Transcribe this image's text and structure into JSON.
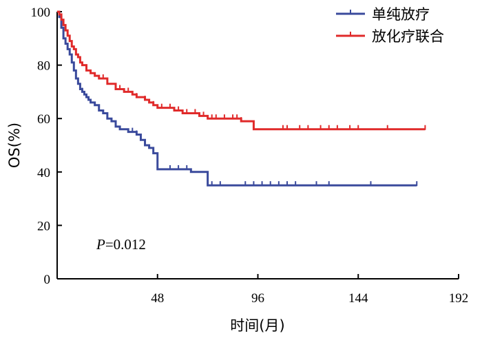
{
  "chart_data": {
    "type": "line",
    "title": "",
    "xlabel": "时间(月)",
    "ylabel": "OS(%)",
    "xlim": [
      0,
      192
    ],
    "ylim": [
      0,
      100
    ],
    "xticks": [
      48,
      96,
      144,
      192
    ],
    "yticks": [
      0,
      20,
      40,
      60,
      80,
      100
    ],
    "grid": false,
    "legend_position": "top-right",
    "annotation": {
      "italic": "P",
      "text": "=0.012"
    },
    "series": [
      {
        "name": "单纯放疗",
        "color": "#3a4a9c",
        "x": [
          0,
          1,
          2,
          3,
          4,
          5,
          6,
          7,
          8,
          9,
          10,
          11,
          12,
          13,
          14,
          15,
          16,
          18,
          20,
          22,
          24,
          26,
          28,
          30,
          32,
          34,
          36,
          38,
          40,
          42,
          44,
          46,
          48,
          52,
          56,
          60,
          64,
          68,
          72,
          80,
          96,
          120,
          144,
          172
        ],
        "y": [
          100,
          98,
          94,
          90,
          88,
          86,
          84,
          81,
          78,
          75,
          73,
          71,
          70,
          69,
          68,
          67,
          66,
          65,
          63,
          62,
          60,
          59,
          57,
          56,
          56,
          55,
          55,
          54,
          52,
          50,
          49,
          47,
          41,
          41,
          41,
          41,
          40,
          40,
          35,
          35,
          35,
          35,
          35,
          35
        ],
        "censor_x": [
          2,
          12,
          24,
          36,
          38,
          54,
          58,
          62,
          72,
          74,
          78,
          90,
          94,
          98,
          102,
          106,
          110,
          114,
          124,
          130,
          150,
          172
        ]
      },
      {
        "name": "放化疗联合",
        "color": "#e02a2a",
        "x": [
          0,
          1,
          2,
          3,
          4,
          5,
          6,
          7,
          8,
          9,
          10,
          11,
          12,
          14,
          16,
          18,
          20,
          24,
          28,
          32,
          36,
          38,
          40,
          42,
          44,
          46,
          48,
          52,
          56,
          60,
          64,
          68,
          72,
          80,
          88,
          94,
          120,
          150,
          176
        ],
        "y": [
          100,
          99,
          97,
          95,
          93,
          91,
          89,
          87,
          86,
          84,
          83,
          81,
          80,
          78,
          77,
          76,
          75,
          73,
          71,
          70,
          69,
          68,
          68,
          67,
          66,
          65,
          64,
          64,
          63,
          62,
          62,
          61,
          60,
          60,
          59,
          56,
          56,
          56,
          56
        ],
        "censor_x": [
          6,
          14,
          22,
          30,
          34,
          38,
          42,
          46,
          50,
          54,
          58,
          62,
          66,
          70,
          74,
          76,
          80,
          84,
          86,
          88,
          108,
          110,
          116,
          120,
          126,
          130,
          134,
          140,
          144,
          158,
          176
        ]
      }
    ]
  }
}
